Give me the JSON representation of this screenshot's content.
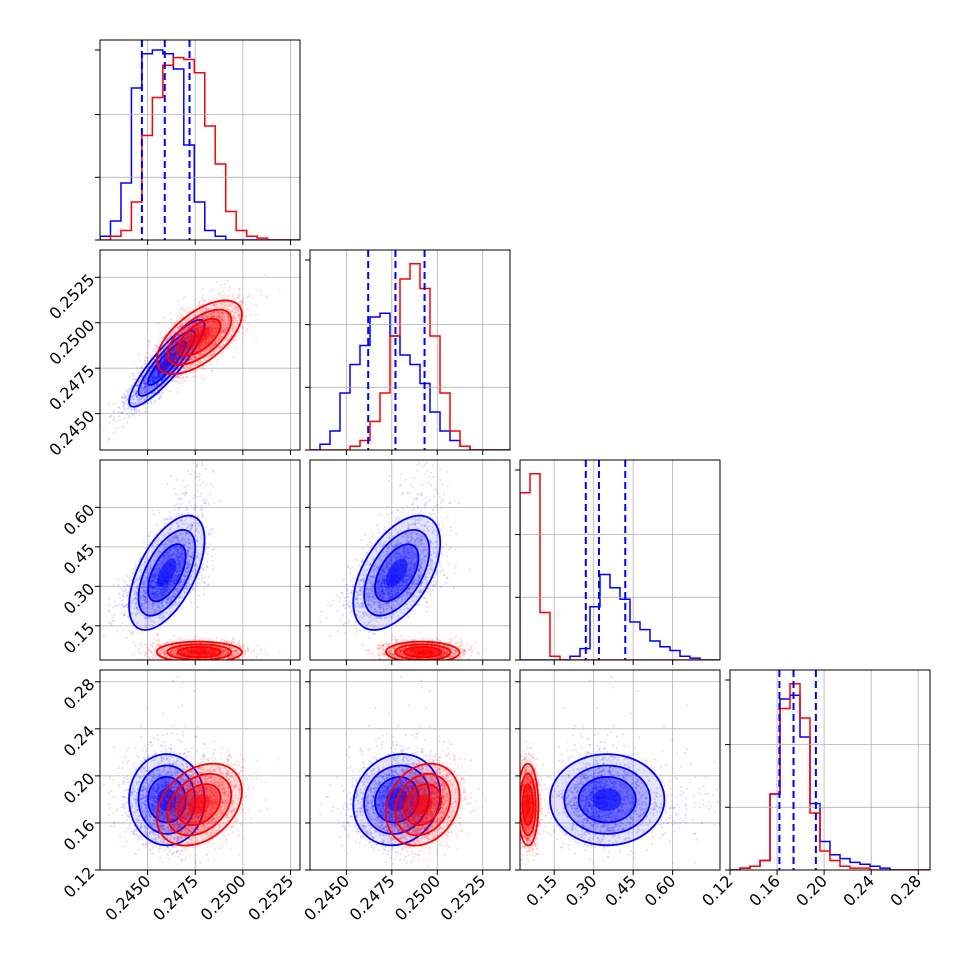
{
  "chart_data": {
    "type": "corner",
    "colors": {
      "blue": "#0000ff",
      "red": "#ff0000"
    },
    "series": [
      {
        "color": "#0000ff",
        "mean": [
          0.246,
          0.2478,
          0.33,
          0.178
        ],
        "sd": [
          0.001,
          0.0012,
          0.075,
          0.017
        ],
        "corr01": 0.85,
        "corr02": 0.6,
        "corr12": 0.6,
        "quantiles": [
          [
            0.2447,
            0.2459,
            0.2472
          ],
          [
            0.2462,
            0.2477,
            0.2493
          ],
          [
            0.27,
            0.32,
            0.42
          ],
          [
            0.162,
            0.174,
            0.193
          ]
        ]
      },
      {
        "color": "#ff0000",
        "mean": [
          0.2477,
          0.2492,
          0.05,
          0.176
        ],
        "sd": [
          0.0011,
          0.001,
          0.02,
          0.017
        ]
      }
    ],
    "axes": [
      {
        "range": [
          0.2425,
          0.253
        ],
        "ticks": [
          0.245,
          0.2475,
          0.25,
          0.2525
        ],
        "tick_labels": [
          "0.2450",
          "0.2475",
          "0.2500",
          "0.2525"
        ]
      },
      {
        "range": [
          0.243,
          0.254
        ],
        "ticks": [
          0.245,
          0.2475,
          0.25,
          0.2525
        ],
        "tick_labels": [
          "0.2450",
          "0.2475",
          "0.2500",
          "0.2525"
        ]
      },
      {
        "range": [
          0.02,
          0.78
        ],
        "ticks": [
          0.15,
          0.3,
          0.45,
          0.6
        ],
        "tick_labels": [
          "0.15",
          "0.30",
          "0.45",
          "0.60"
        ]
      },
      {
        "range": [
          0.12,
          0.29
        ],
        "ticks": [
          0.12,
          0.16,
          0.2,
          0.24,
          0.28
        ],
        "tick_labels": [
          "0.12",
          "0.16",
          "0.20",
          "0.24",
          "0.28"
        ]
      }
    ],
    "diagonal_histograms": [
      {
        "edges": [
          0.2425,
          0.24305,
          0.2436,
          0.24415,
          0.2447,
          0.24525,
          0.2458,
          0.24635,
          0.2469,
          0.24745,
          0.248,
          0.24855,
          0.2491,
          0.24965,
          0.2502,
          0.25075,
          0.2513,
          0.25185,
          0.2524,
          0.25295,
          0.2535
        ],
        "counts": {
          "blue": [
            0.02,
            0.1,
            0.3,
            0.8,
            0.98,
            1.0,
            0.98,
            0.9,
            0.5,
            0.2,
            0.05,
            0.02,
            0,
            0,
            0,
            0,
            0,
            0,
            0,
            0
          ],
          "red": [
            0,
            0.02,
            0.05,
            0.2,
            0.55,
            0.75,
            0.92,
            0.96,
            0.95,
            0.88,
            0.6,
            0.4,
            0.15,
            0.05,
            0.02,
            0.01,
            0,
            0,
            0,
            0
          ]
        }
      },
      {
        "edges": [
          0.243,
          0.24355,
          0.2441,
          0.24465,
          0.2452,
          0.24575,
          0.2463,
          0.24685,
          0.2474,
          0.24795,
          0.2485,
          0.24905,
          0.2496,
          0.25015,
          0.2507,
          0.25125,
          0.2518,
          0.25235,
          0.2529,
          0.25345,
          0.254
        ],
        "counts": {
          "blue": [
            0,
            0.03,
            0.1,
            0.3,
            0.45,
            0.55,
            0.7,
            0.72,
            0.6,
            0.5,
            0.45,
            0.35,
            0.2,
            0.1,
            0.05,
            0.02,
            0,
            0,
            0,
            0
          ],
          "red": [
            0,
            0,
            0,
            0,
            0.02,
            0.05,
            0.15,
            0.3,
            0.6,
            0.9,
            0.98,
            0.85,
            0.6,
            0.3,
            0.1,
            0.02,
            0,
            0,
            0,
            0
          ]
        }
      },
      {
        "edges": [
          0.02,
          0.058,
          0.096,
          0.134,
          0.172,
          0.21,
          0.248,
          0.286,
          0.324,
          0.362,
          0.4,
          0.438,
          0.476,
          0.514,
          0.552,
          0.59,
          0.628,
          0.666,
          0.704,
          0.742,
          0.78
        ],
        "counts": {
          "blue": [
            0,
            0,
            0,
            0,
            0,
            0.02,
            0.06,
            0.28,
            0.45,
            0.38,
            0.32,
            0.2,
            0.16,
            0.1,
            0.07,
            0.05,
            0.02,
            0.01,
            0,
            0
          ],
          "red": [
            0.88,
            0.98,
            0.25,
            0.02,
            0,
            0,
            0,
            0,
            0,
            0,
            0,
            0,
            0,
            0,
            0,
            0,
            0,
            0,
            0,
            0
          ]
        }
      },
      {
        "edges": [
          0.12,
          0.1285,
          0.137,
          0.1455,
          0.154,
          0.1625,
          0.171,
          0.1795,
          0.188,
          0.1965,
          0.205,
          0.2135,
          0.222,
          0.2305,
          0.239,
          0.2475,
          0.256,
          0.2645,
          0.273,
          0.2815,
          0.29
        ],
        "counts": {
          "blue": [
            0,
            0.01,
            0.02,
            0.05,
            0.4,
            0.9,
            0.92,
            0.7,
            0.35,
            0.15,
            0.08,
            0.06,
            0.04,
            0.03,
            0.02,
            0.01,
            0,
            0,
            0,
            0
          ],
          "red": [
            0,
            0.01,
            0.02,
            0.05,
            0.4,
            0.85,
            0.98,
            0.8,
            0.3,
            0.1,
            0.05,
            0.02,
            0.01,
            0.01,
            0,
            0,
            0,
            0,
            0,
            0
          ]
        }
      }
    ],
    "grid": true
  }
}
